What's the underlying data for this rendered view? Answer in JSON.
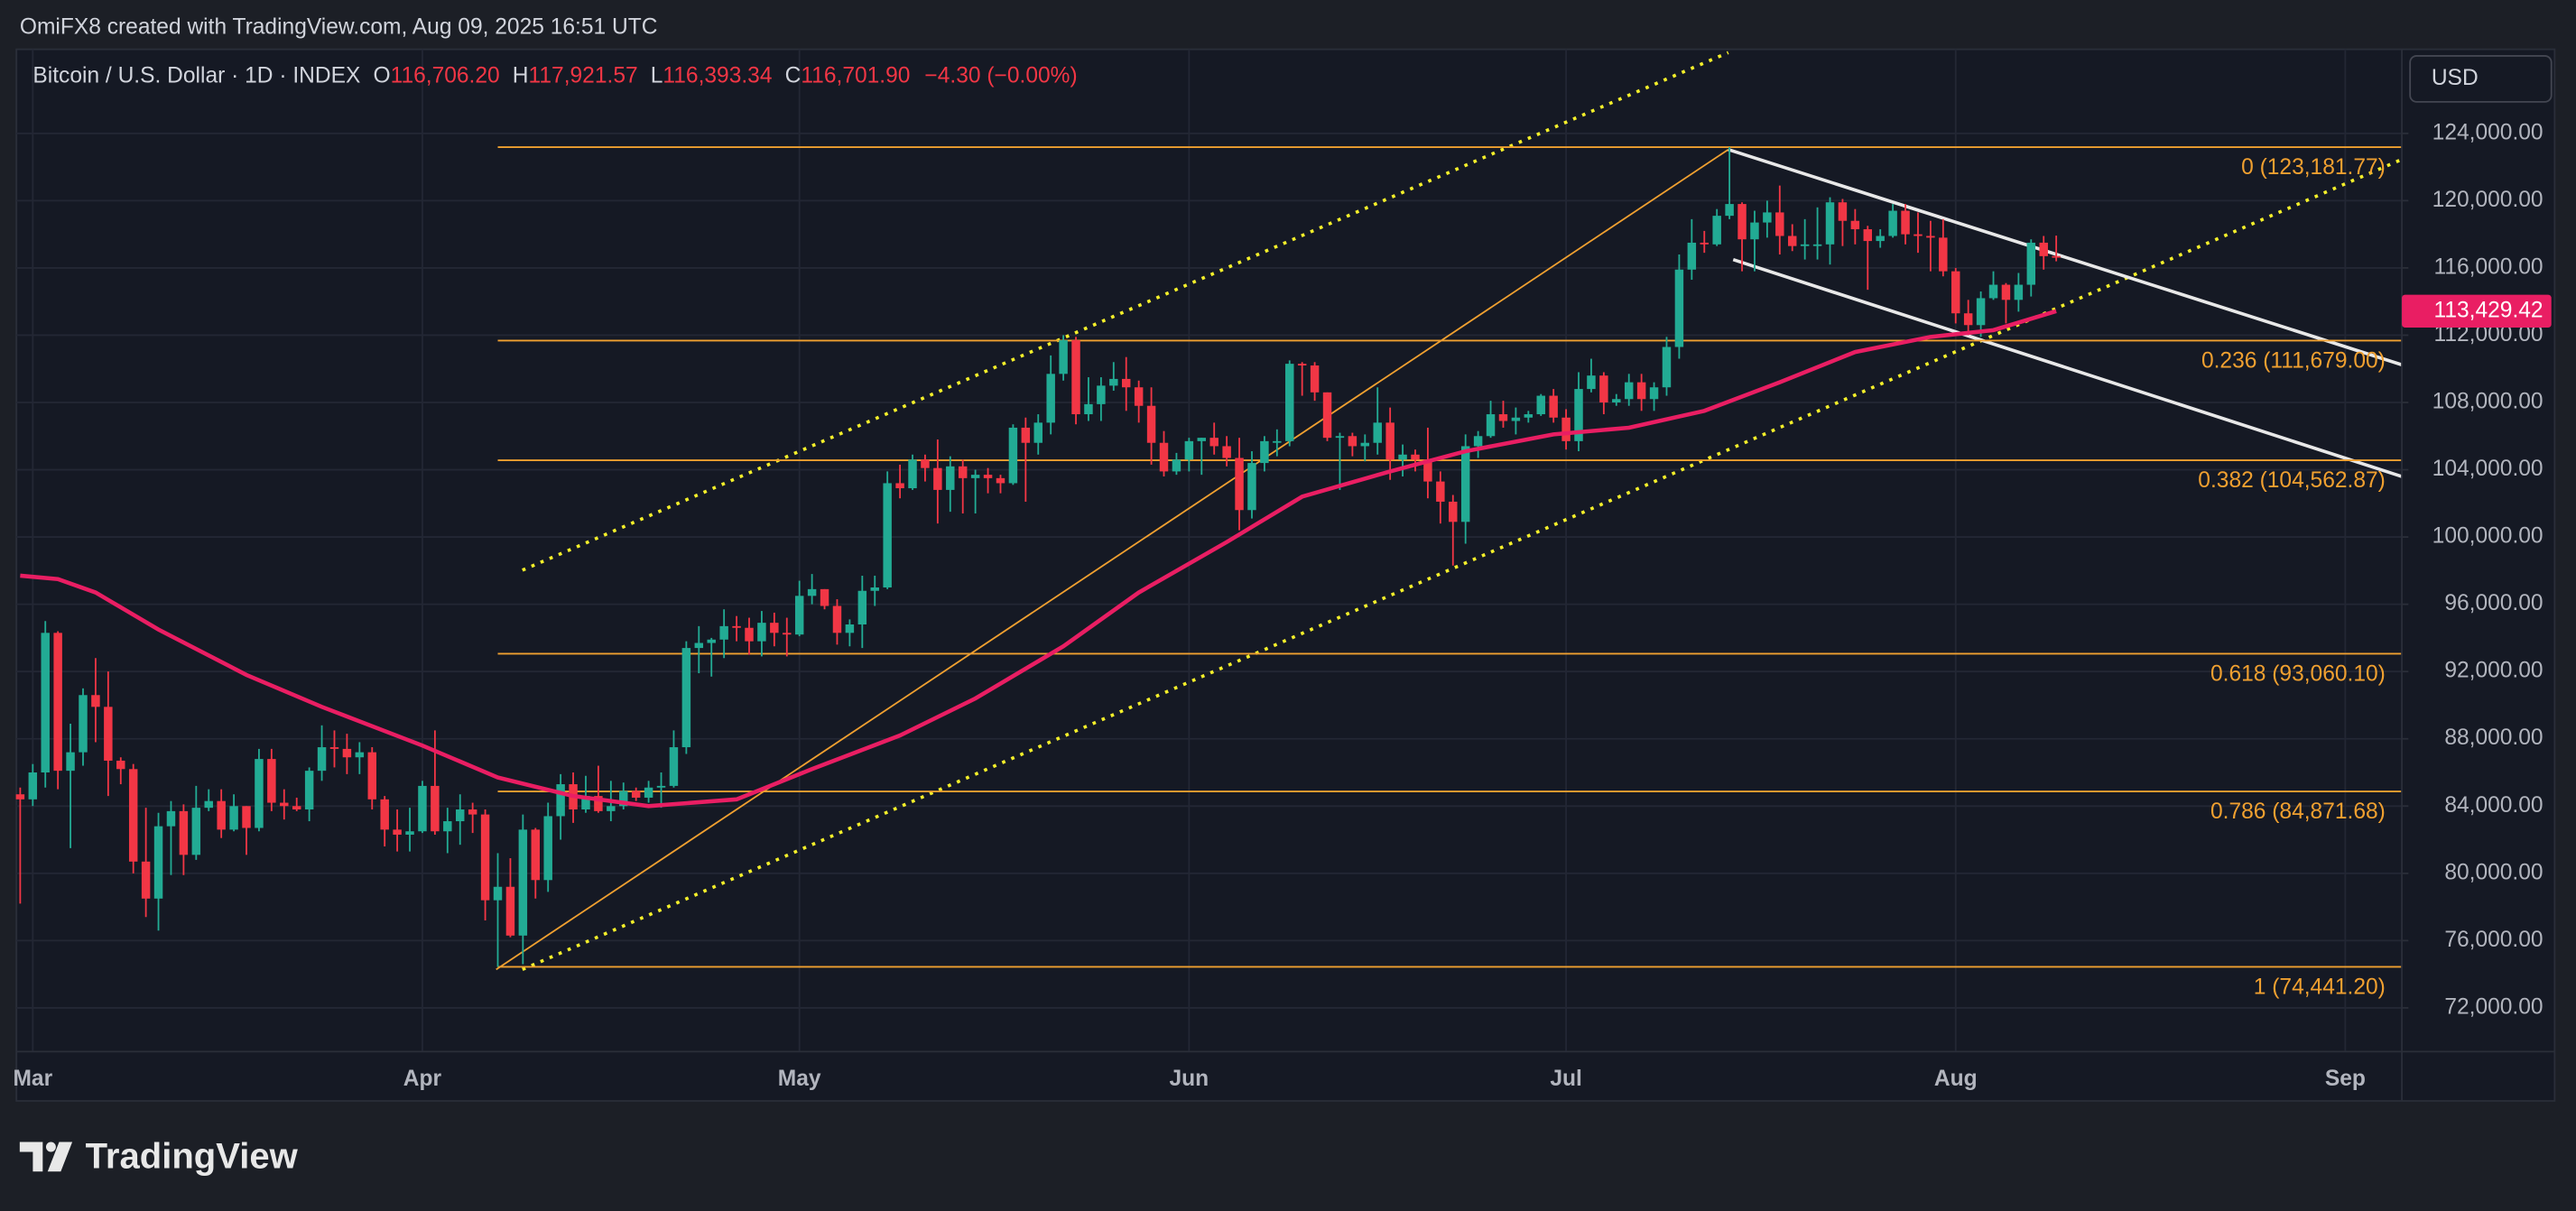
{
  "header": {
    "attribution": "OmiFX8 created with TradingView.com, Aug 09, 2025 16:51 UTC"
  },
  "chart_data": {
    "type": "candlestick",
    "symbol": "Bitcoin / U.S. Dollar · 1D · INDEX",
    "ohlc_legend": [
      {
        "key": "O",
        "label": "116,706.20"
      },
      {
        "key": "H",
        "label": "117,921.57"
      },
      {
        "key": "L",
        "label": "116,393.34"
      },
      {
        "key": "C",
        "label": "116,701.90"
      }
    ],
    "change": "−4.30 (−0.00%)",
    "currency": "USD",
    "up_color": "#22ab94",
    "down_color": "#f23645",
    "open": [
      84700,
      84400,
      86000,
      94300,
      86100,
      87200,
      90600,
      89900,
      86700,
      86200,
      80700,
      78500,
      82800,
      83700,
      81100,
      83900,
      84300,
      82600,
      84000,
      82700,
      86800,
      84200,
      84000,
      83800,
      86100,
      87500,
      87400,
      86900,
      87200,
      84400,
      82600,
      82300,
      82500,
      85200,
      82500,
      83100,
      83800,
      83500,
      78400,
      79200,
      76300,
      82600,
      79600,
      83400,
      85300,
      83800,
      84600,
      83700,
      84000,
      84900,
      84500,
      85100,
      85200,
      87500,
      93400,
      93700,
      93900,
      94700,
      94600,
      93800,
      94900,
      94300,
      94200,
      96500,
      96900,
      95900,
      94300,
      94800,
      96800,
      97000,
      103200,
      102900,
      104600,
      104100,
      102800,
      104200,
      103500,
      103700,
      103500,
      103200,
      106500,
      105600,
      106800,
      109700,
      111700,
      107300,
      107900,
      109000,
      109400,
      108900,
      107800,
      105600,
      103900,
      104600,
      105700,
      105900,
      105400,
      104700,
      101600,
      104400,
      105700,
      105700,
      110300,
      110200,
      108600,
      105900,
      106000,
      105400,
      105600,
      106800,
      104600,
      104900,
      104600,
      103300,
      102100,
      100900,
      105400,
      106000,
      107300,
      106900,
      107100,
      107300,
      108400,
      107100,
      105700,
      108800,
      109600,
      108000,
      108200,
      109200,
      108200,
      108900,
      111300,
      115900,
      117500,
      117400,
      119100,
      119800,
      117700,
      118700,
      119300,
      117900,
      117300,
      117400,
      117400,
      119900,
      118800,
      118300,
      117600,
      117900,
      119400,
      118000,
      117900,
      117800,
      115800,
      113300,
      112600,
      114200,
      115000,
      114100,
      115000,
      117500,
      116706.2
    ],
    "high": [
      85100,
      86500,
      95000,
      94400,
      88900,
      91000,
      92800,
      92000,
      86900,
      86500,
      83900,
      83600,
      84300,
      84100,
      85200,
      85000,
      85000,
      84700,
      84000,
      87400,
      87400,
      85000,
      84500,
      86300,
      88800,
      88500,
      88300,
      87800,
      87500,
      84600,
      83800,
      83900,
      85500,
      88500,
      83900,
      84700,
      84200,
      83800,
      81200,
      80900,
      83500,
      82700,
      84200,
      85900,
      86000,
      85800,
      86400,
      85500,
      85400,
      85100,
      85500,
      86000,
      88500,
      93800,
      94700,
      94000,
      95700,
      95300,
      95200,
      95600,
      95500,
      95200,
      97400,
      97800,
      96900,
      96300,
      95100,
      97700,
      97700,
      103900,
      104300,
      104900,
      104900,
      105800,
      104800,
      104600,
      104000,
      104100,
      103700,
      106700,
      107100,
      107300,
      110800,
      112000,
      111900,
      109500,
      109500,
      110400,
      110700,
      109300,
      108900,
      106300,
      105000,
      105900,
      105900,
      106800,
      106000,
      105900,
      105100,
      106000,
      106400,
      110500,
      110400,
      110400,
      108600,
      106200,
      106200,
      106100,
      108900,
      107700,
      105500,
      105200,
      106500,
      103900,
      102500,
      106100,
      106300,
      108100,
      108100,
      107700,
      107500,
      108500,
      108800,
      107600,
      109800,
      110600,
      109800,
      108500,
      109700,
      109700,
      109200,
      111900,
      116800,
      118900,
      118200,
      119500,
      123181.77,
      119900,
      119400,
      120000,
      120900,
      118600,
      118900,
      119600,
      120200,
      120100,
      119500,
      118500,
      118300,
      119800,
      119800,
      119300,
      118800,
      118900,
      116000,
      114100,
      114600,
      115800,
      115100,
      115700,
      117700,
      117900,
      117921.57
    ],
    "low": [
      78200,
      84000,
      85100,
      85000,
      81500,
      86400,
      87800,
      84600,
      85300,
      80000,
      77400,
      76600,
      79900,
      79900,
      80800,
      83700,
      82100,
      82500,
      81100,
      82500,
      83700,
      83200,
      83700,
      83100,
      85500,
      86300,
      85900,
      85900,
      83800,
      81600,
      81300,
      81300,
      82400,
      82300,
      81200,
      81700,
      82400,
      77200,
      74441.2,
      76200,
      74600,
      78500,
      78900,
      82000,
      83000,
      83600,
      83600,
      83100,
      83800,
      84300,
      84200,
      83900,
      85100,
      87100,
      91900,
      91700,
      92800,
      93800,
      93000,
      92900,
      93500,
      92900,
      94100,
      96000,
      95700,
      93600,
      93500,
      93400,
      95900,
      96900,
      102300,
      102800,
      103300,
      100800,
      101500,
      101400,
      101400,
      102600,
      102600,
      103100,
      102100,
      104900,
      106100,
      109300,
      106700,
      106900,
      106900,
      108700,
      107500,
      106800,
      104300,
      103600,
      103700,
      103900,
      103700,
      104900,
      104200,
      100400,
      101100,
      103900,
      104800,
      105400,
      108400,
      108100,
      105700,
      102800,
      104800,
      104500,
      104900,
      103400,
      103600,
      103900,
      102300,
      100800,
      98300,
      99600,
      104700,
      105900,
      106500,
      106100,
      106800,
      107200,
      106800,
      105200,
      105100,
      108600,
      107300,
      107800,
      107800,
      107500,
      107500,
      108400,
      110600,
      115300,
      116900,
      117300,
      118900,
      115800,
      115800,
      117800,
      116800,
      117000,
      116500,
      116500,
      116200,
      117300,
      117400,
      114700,
      117200,
      117800,
      117400,
      116900,
      115800,
      115500,
      112700,
      112000,
      111900,
      114100,
      112700,
      113400,
      114300,
      115900,
      116393.34
    ],
    "close": [
      84400,
      86000,
      94300,
      86100,
      87200,
      90600,
      89900,
      86700,
      86200,
      80700,
      78500,
      82800,
      83700,
      81100,
      83900,
      84300,
      82600,
      84000,
      82700,
      86800,
      84200,
      84000,
      83800,
      86100,
      87500,
      87400,
      86900,
      87200,
      84400,
      82600,
      82300,
      82500,
      85200,
      82500,
      83100,
      83800,
      83500,
      78400,
      79200,
      76300,
      82600,
      79600,
      83400,
      85300,
      83800,
      84600,
      83700,
      84000,
      84900,
      84500,
      85100,
      85200,
      87500,
      93400,
      93700,
      93900,
      94700,
      94600,
      93800,
      94900,
      94300,
      94200,
      96500,
      96900,
      95900,
      94300,
      94800,
      96800,
      97000,
      103200,
      102900,
      104600,
      104100,
      102800,
      104200,
      103500,
      103700,
      103500,
      103200,
      106500,
      105600,
      106800,
      109700,
      111700,
      107300,
      107900,
      109000,
      109400,
      108900,
      107800,
      105600,
      103900,
      104600,
      105700,
      105900,
      105400,
      104700,
      101600,
      104400,
      105700,
      105700,
      110300,
      110200,
      108600,
      105900,
      106000,
      105400,
      105600,
      106800,
      104600,
      104900,
      104600,
      103300,
      102100,
      100900,
      105400,
      106000,
      107300,
      106900,
      107100,
      107300,
      108400,
      107100,
      105700,
      108800,
      109600,
      108000,
      108200,
      109200,
      108200,
      108900,
      111300,
      115900,
      117500,
      117400,
      119100,
      119800,
      117700,
      118700,
      119300,
      117900,
      117300,
      117400,
      117400,
      119900,
      118800,
      118300,
      117600,
      117900,
      119400,
      118000,
      117900,
      117800,
      115800,
      113300,
      112600,
      114200,
      115000,
      114100,
      115000,
      117500,
      116700,
      116701.9
    ],
    "xlim": [
      -0.3,
      189.5
    ],
    "xticks": [
      {
        "value": 1,
        "label": "Mar"
      },
      {
        "value": 32,
        "label": "Apr"
      },
      {
        "value": 62,
        "label": "May"
      },
      {
        "value": 93,
        "label": "Jun"
      },
      {
        "value": 123,
        "label": "Jul"
      },
      {
        "value": 154,
        "label": "Aug"
      },
      {
        "value": 185,
        "label": "Sep"
      }
    ],
    "ylim": [
      69400,
      129000
    ],
    "yticks": [
      {
        "value": 72000,
        "label": "72,000.00"
      },
      {
        "value": 76000,
        "label": "76,000.00"
      },
      {
        "value": 80000,
        "label": "80,000.00"
      },
      {
        "value": 84000,
        "label": "84,000.00"
      },
      {
        "value": 88000,
        "label": "88,000.00"
      },
      {
        "value": 92000,
        "label": "92,000.00"
      },
      {
        "value": 96000,
        "label": "96,000.00"
      },
      {
        "value": 100000,
        "label": "100,000.00"
      },
      {
        "value": 104000,
        "label": "104,000.00"
      },
      {
        "value": 108000,
        "label": "108,000.00"
      },
      {
        "value": 112000,
        "label": "112,000.00"
      },
      {
        "value": 116000,
        "label": "116,000.00"
      },
      {
        "value": 120000,
        "label": "120,000.00"
      },
      {
        "value": 124000,
        "label": "124,000.00"
      }
    ],
    "grid": true,
    "moving_average": {
      "color": "#e91e63",
      "x": [
        0,
        3,
        6,
        11,
        18,
        24,
        32,
        38,
        44,
        50,
        57,
        63,
        70,
        76,
        83,
        89,
        96,
        102,
        109,
        115,
        122,
        128,
        134,
        140,
        146,
        152,
        157,
        162
      ],
      "values": [
        97700,
        97500,
        96700,
        94500,
        91800,
        89900,
        87600,
        85700,
        84600,
        84000,
        84400,
        86200,
        88200,
        90400,
        93500,
        96700,
        99700,
        102400,
        103900,
        105100,
        106100,
        106500,
        107500,
        109200,
        111000,
        111900,
        112300,
        113429.42
      ],
      "value_label": "113,429.42"
    },
    "fib_start": 38,
    "fib_color": "#f0a030",
    "fib_levels": [
      {
        "value": 123181.77,
        "label": "0 (123,181.77)"
      },
      {
        "value": 111679.0,
        "label": "0.236 (111,679.00)"
      },
      {
        "value": 104562.87,
        "label": "0.382 (104,562.87)"
      },
      {
        "value": 93060.1,
        "label": "0.618 (93,060.10)"
      },
      {
        "value": 84871.68,
        "label": "0.786 (84,871.68)"
      },
      {
        "value": 74441.2,
        "label": "1 (74,441.20)"
      }
    ]
  },
  "branding": "TradingView"
}
